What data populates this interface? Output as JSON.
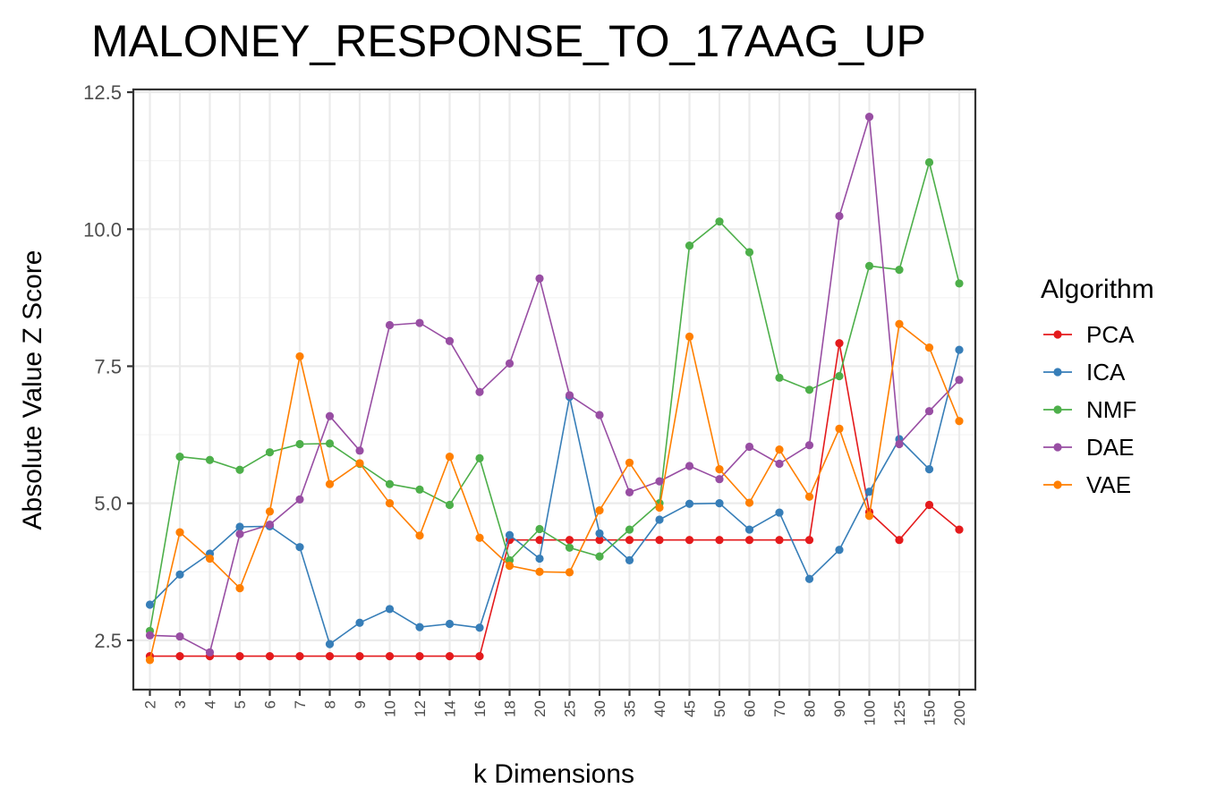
{
  "chart_data": {
    "type": "line",
    "title": "MALONEY_RESPONSE_TO_17AAG_UP",
    "xlabel": "k Dimensions",
    "ylabel": "Absolute Value Z Score",
    "categories": [
      "2",
      "3",
      "4",
      "5",
      "6",
      "7",
      "8",
      "9",
      "10",
      "12",
      "14",
      "16",
      "18",
      "20",
      "25",
      "30",
      "35",
      "40",
      "45",
      "50",
      "60",
      "70",
      "80",
      "90",
      "100",
      "125",
      "150",
      "200"
    ],
    "ylim": [
      1.6,
      12.55
    ],
    "yticks": [
      2.5,
      5.0,
      7.5,
      10.0,
      12.5
    ],
    "ytick_labels": [
      "2.5",
      "5.0",
      "7.5",
      "10.0",
      "12.5"
    ],
    "legend": {
      "title": "Algorithm",
      "placement": "right"
    },
    "grid": true,
    "series": [
      {
        "name": "PCA",
        "color": "#e41a1c",
        "values": [
          2.21,
          2.21,
          2.21,
          2.21,
          2.21,
          2.21,
          2.21,
          2.21,
          2.21,
          2.21,
          2.21,
          2.21,
          4.33,
          4.33,
          4.33,
          4.33,
          4.33,
          4.33,
          4.33,
          4.33,
          4.33,
          4.33,
          4.33,
          7.92,
          4.84,
          4.33,
          4.97,
          4.52
        ]
      },
      {
        "name": "ICA",
        "color": "#377eb8",
        "values": [
          3.15,
          3.7,
          4.08,
          4.57,
          4.58,
          4.2,
          2.43,
          2.82,
          3.07,
          2.74,
          2.8,
          2.73,
          4.42,
          3.99,
          6.94,
          4.45,
          3.96,
          4.7,
          4.99,
          5.0,
          4.52,
          4.83,
          3.62,
          4.15,
          5.21,
          6.17,
          5.62,
          7.8
        ]
      },
      {
        "name": "NMF",
        "color": "#4daf4a",
        "values": [
          2.67,
          5.85,
          5.79,
          5.61,
          5.93,
          6.08,
          6.09,
          5.72,
          5.35,
          5.25,
          4.97,
          5.82,
          3.96,
          4.53,
          4.19,
          4.03,
          4.52,
          5.0,
          9.7,
          10.14,
          9.58,
          7.29,
          7.07,
          7.32,
          9.33,
          9.26,
          11.22,
          9.01
        ]
      },
      {
        "name": "DAE",
        "color": "#984ea3",
        "values": [
          2.59,
          2.57,
          2.28,
          4.44,
          4.61,
          5.07,
          6.59,
          5.96,
          8.25,
          8.29,
          7.96,
          7.03,
          7.55,
          9.1,
          6.97,
          6.61,
          5.2,
          5.4,
          5.68,
          5.44,
          6.03,
          5.72,
          6.06,
          10.24,
          12.05,
          6.08,
          6.68,
          7.25
        ]
      },
      {
        "name": "VAE",
        "color": "#ff7f00",
        "values": [
          2.14,
          4.47,
          3.99,
          3.45,
          4.85,
          7.68,
          5.35,
          5.73,
          5.0,
          4.41,
          5.85,
          4.37,
          3.86,
          3.75,
          3.74,
          4.87,
          5.74,
          4.92,
          8.04,
          5.62,
          5.01,
          5.98,
          5.12,
          6.36,
          4.77,
          8.27,
          7.84,
          6.5
        ]
      }
    ]
  }
}
